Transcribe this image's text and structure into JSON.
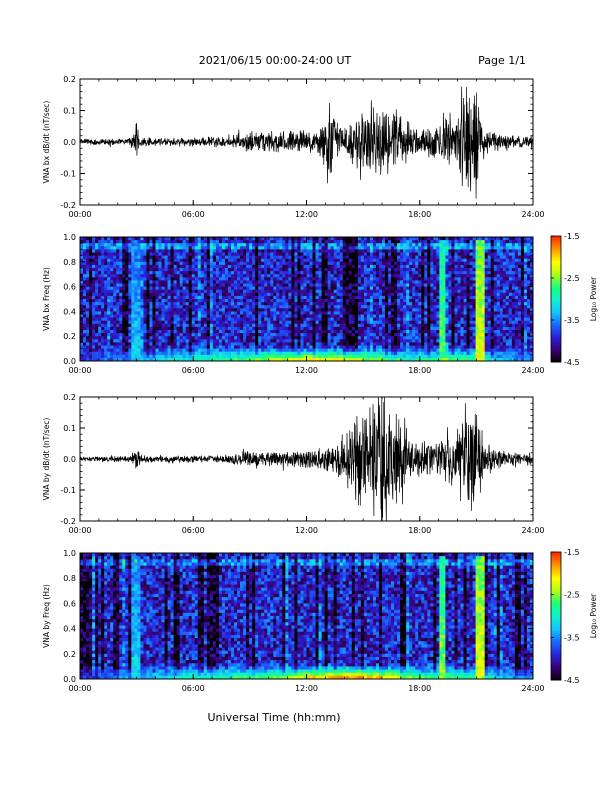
{
  "header": {
    "date_range": "2021/06/15  00:00-24:00 UT",
    "page": "Page 1/1"
  },
  "footer": {
    "xlabel": "Universal Time (hh:mm)"
  },
  "colors": {
    "colormap": [
      "#000000",
      "#3a0070",
      "#2a1fd6",
      "#1a66ff",
      "#14c2ff",
      "#10f0d0",
      "#1aff7a",
      "#aaff14",
      "#ffff00",
      "#ff9900",
      "#ff2a00"
    ]
  },
  "chart_data": [
    {
      "type": "line",
      "id": "bx-wave",
      "ylabel": "VNA bx dB/dt (nT/sec)",
      "ylim": [
        -0.2,
        0.2
      ],
      "yticks": [
        "0.2",
        "0.1",
        "0.0",
        "-0.1",
        "-0.2"
      ],
      "xticks": [
        "00:00",
        "06:00",
        "12:00",
        "18:00",
        "24:00"
      ],
      "xlim_hours": [
        0,
        24
      ],
      "series": [
        {
          "x_hours": [
            0,
            1,
            2,
            2.8,
            3,
            3.2,
            4,
            5,
            6,
            7,
            8,
            8.5,
            9,
            10,
            11,
            12,
            12.5,
            13,
            13.3,
            13.5,
            14,
            14.5,
            15,
            15.5,
            16,
            16.5,
            17,
            17.5,
            18,
            18.5,
            19,
            19.5,
            20,
            20.3,
            20.5,
            20.8,
            21,
            21.2,
            21.5,
            22,
            23,
            24
          ],
          "amplitude": [
            0.01,
            0.01,
            0.01,
            0.015,
            0.06,
            0.02,
            0.012,
            0.012,
            0.014,
            0.016,
            0.02,
            0.025,
            0.03,
            0.035,
            0.035,
            0.035,
            0.04,
            0.08,
            0.15,
            0.06,
            0.05,
            0.07,
            0.09,
            0.11,
            0.11,
            0.1,
            0.08,
            0.06,
            0.04,
            0.05,
            0.06,
            0.07,
            0.08,
            0.2,
            0.2,
            0.2,
            0.2,
            0.09,
            0.04,
            0.03,
            0.02,
            0.02
          ]
        }
      ]
    },
    {
      "type": "heatmap",
      "id": "bx-freq",
      "ylabel": "VNA bx Freq (Hz)",
      "ylim": [
        0.0,
        1.0
      ],
      "yticks": [
        "1.0",
        "0.8",
        "0.6",
        "0.4",
        "0.2",
        "0.0"
      ],
      "xticks": [
        "00:00",
        "06:00",
        "12:00",
        "18:00",
        "24:00"
      ],
      "xlim_hours": [
        0,
        24
      ],
      "colorbar": {
        "label": "Log₁₀ Power",
        "ticks": [
          "-1.5",
          "-2.5",
          "-3.5",
          "-4.5"
        ],
        "range": [
          -4.5,
          -1.5
        ]
      },
      "low_freq_band_power": [
        -3.8,
        -3.6,
        -3.5,
        -3.3,
        -3.0,
        -2.9,
        -2.8,
        -2.7,
        -2.6,
        -2.4,
        -2.2,
        -2.0,
        -1.9,
        -2.0,
        -2.1,
        -2.3,
        -2.6,
        -2.8,
        -2.7,
        -2.5,
        -2.6,
        -2.9,
        -3.2,
        -3.5
      ],
      "vertical_enhancements": [
        {
          "center_hour": 3.0,
          "level": -3.2
        },
        {
          "center_hour": 19.2,
          "level": -2.6
        },
        {
          "center_hour": 21.2,
          "level": -2.2
        }
      ]
    },
    {
      "type": "line",
      "id": "by-wave",
      "ylabel": "VNA by dB/dt (nT/sec)",
      "ylim": [
        -0.2,
        0.2
      ],
      "yticks": [
        "0.2",
        "0.1",
        "0.0",
        "-0.1",
        "-0.2"
      ],
      "xticks": [
        "00:00",
        "06:00",
        "12:00",
        "18:00",
        "24:00"
      ],
      "xlim_hours": [
        0,
        24
      ],
      "series": [
        {
          "x_hours": [
            0,
            1,
            2,
            2.8,
            3,
            3.2,
            4,
            5,
            6,
            7,
            8,
            8.5,
            9,
            10,
            11,
            12,
            12.5,
            13,
            13.5,
            14,
            14.5,
            15,
            15.5,
            16,
            16.5,
            17,
            17.5,
            18,
            18.5,
            19,
            19.5,
            20,
            20.5,
            21,
            21.5,
            22,
            23,
            24
          ],
          "amplitude": [
            0.008,
            0.008,
            0.01,
            0.012,
            0.05,
            0.015,
            0.01,
            0.01,
            0.012,
            0.012,
            0.015,
            0.02,
            0.025,
            0.025,
            0.025,
            0.025,
            0.03,
            0.04,
            0.05,
            0.08,
            0.12,
            0.15,
            0.18,
            0.2,
            0.16,
            0.12,
            0.08,
            0.06,
            0.05,
            0.05,
            0.07,
            0.1,
            0.18,
            0.15,
            0.06,
            0.03,
            0.02,
            0.02
          ]
        }
      ]
    },
    {
      "type": "heatmap",
      "id": "by-freq",
      "ylabel": "VNA by Freq (Hz)",
      "ylim": [
        0.0,
        1.0
      ],
      "yticks": [
        "1.0",
        "0.8",
        "0.6",
        "0.4",
        "0.2",
        "0.0"
      ],
      "xticks": [
        "00:00",
        "06:00",
        "12:00",
        "18:00",
        "24:00"
      ],
      "xlim_hours": [
        0,
        24
      ],
      "colorbar": {
        "label": "Log₁₀ Power",
        "ticks": [
          "-1.5",
          "-2.5",
          "-3.5",
          "-4.5"
        ],
        "range": [
          -4.5,
          -1.5
        ]
      },
      "low_freq_band_power": [
        -3.8,
        -3.6,
        -3.4,
        -3.2,
        -3.0,
        -2.9,
        -2.8,
        -2.7,
        -2.6,
        -2.5,
        -2.4,
        -2.1,
        -1.8,
        -1.6,
        -1.5,
        -1.7,
        -2.0,
        -2.4,
        -2.6,
        -2.5,
        -2.6,
        -2.9,
        -3.2,
        -3.5
      ],
      "vertical_enhancements": [
        {
          "center_hour": 3.0,
          "level": -3.2
        },
        {
          "center_hour": 19.2,
          "level": -2.5
        },
        {
          "center_hour": 21.2,
          "level": -2.2
        }
      ]
    }
  ]
}
